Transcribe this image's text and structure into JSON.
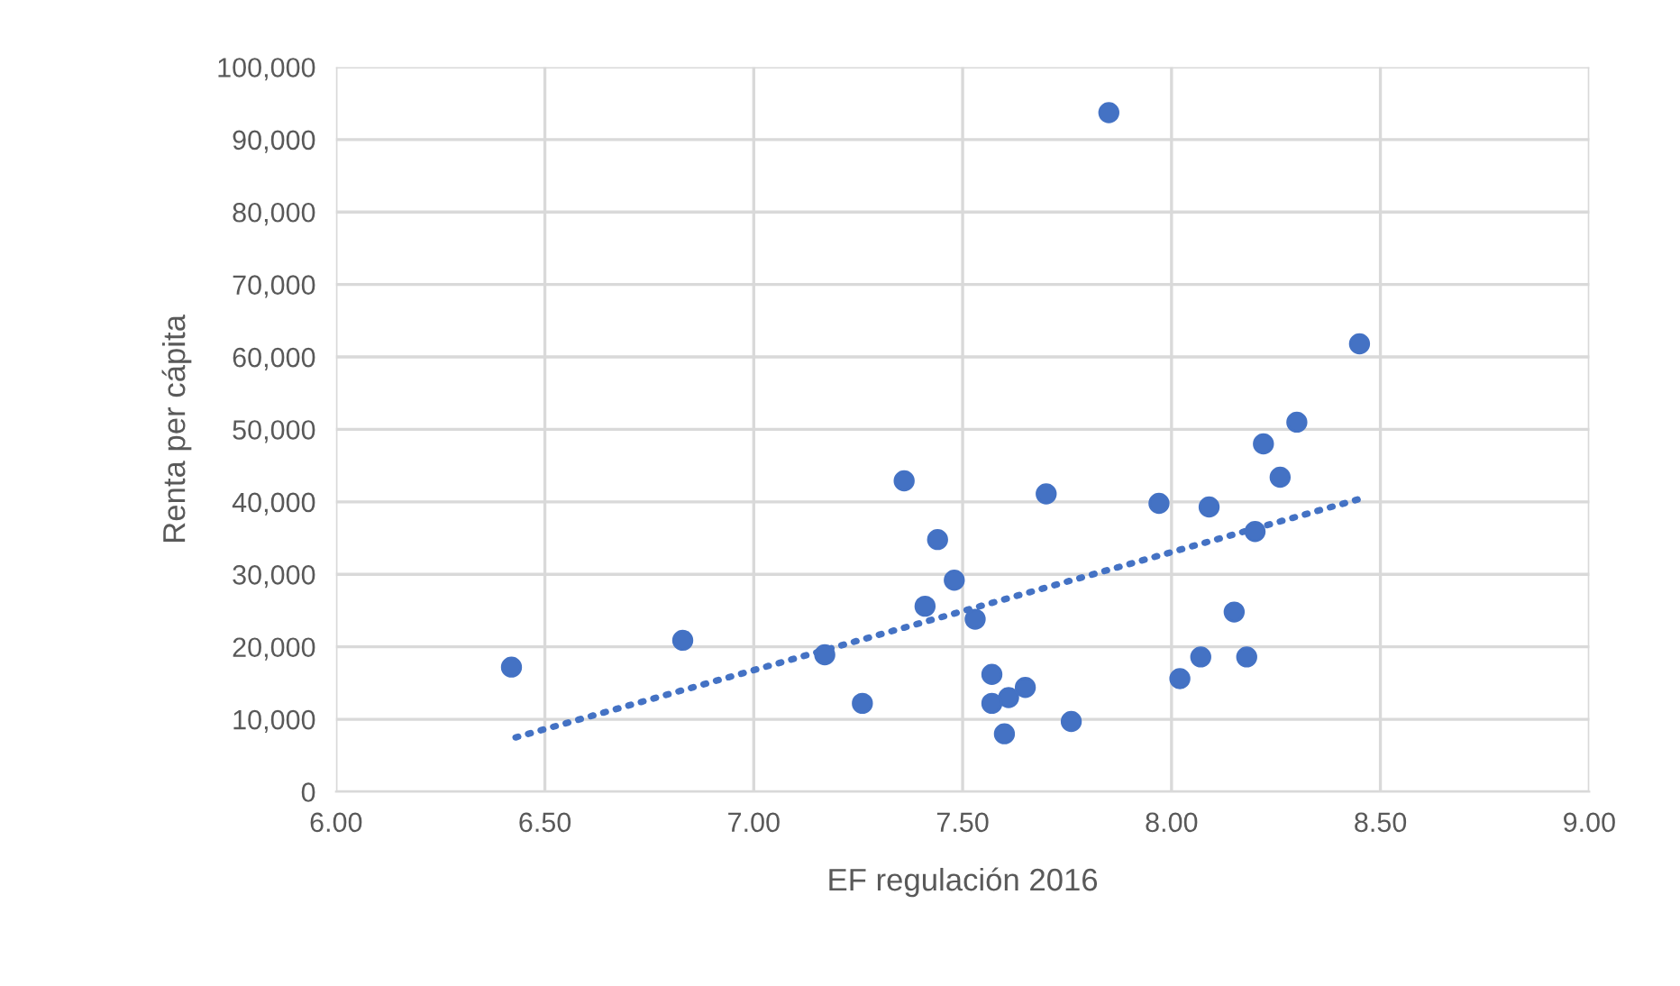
{
  "chart_data": {
    "type": "scatter",
    "xlabel": "EF regulación 2016",
    "ylabel": "Renta per cápita",
    "xlim": [
      6,
      9
    ],
    "xticks": [
      {
        "value": 6,
        "label": "6.00"
      },
      {
        "value": 6.5,
        "label": "6.50"
      },
      {
        "value": 7,
        "label": "7.00"
      },
      {
        "value": 7.5,
        "label": "7.50"
      },
      {
        "value": 8,
        "label": "8.00"
      },
      {
        "value": 8.5,
        "label": "8.50"
      },
      {
        "value": 9,
        "label": "9.00"
      }
    ],
    "ylim": [
      0,
      100000
    ],
    "yticks": [
      0,
      {
        "value": 10000,
        "label": "10,000"
      },
      {
        "value": 20000,
        "label": "20,000"
      },
      {
        "value": 30000,
        "label": "30,000"
      },
      {
        "value": 40000,
        "label": "40,000"
      },
      {
        "value": 50000,
        "label": "50,000"
      },
      {
        "value": 60000,
        "label": "60,000"
      },
      {
        "value": 70000,
        "label": "70,000"
      },
      {
        "value": 80000,
        "label": "80,000"
      },
      {
        "value": 90000,
        "label": "90,000"
      },
      {
        "value": 100000,
        "label": "100,000"
      }
    ],
    "grid": true,
    "legend": false,
    "marker": "circle",
    "series": [
      {
        "color": "#4472c4",
        "x": [
          6.42,
          6.83,
          7.17,
          7.26,
          7.85,
          8.45,
          8.3,
          8.22,
          8.26,
          7.36,
          7.7,
          7.97,
          8.09,
          8.2,
          7.44,
          7.48,
          7.41,
          7.53,
          8.15,
          7.57,
          8.07,
          8.18,
          8.02,
          7.65,
          7.61,
          7.57,
          7.6,
          7.76
        ],
        "values": [
          17200,
          20900,
          18900,
          12200,
          93700,
          61800,
          51000,
          48000,
          43400,
          42900,
          41100,
          39800,
          39300,
          35900,
          34800,
          29200,
          25600,
          23800,
          24800,
          16200,
          18600,
          18600,
          15600,
          14400,
          13000,
          12200,
          8000,
          9700
        ]
      },
      {
        "type": "line",
        "line_style": "dotted",
        "marker": "none",
        "color": "#4472c4",
        "x": [
          6.43,
          8.45
        ],
        "values": [
          7500,
          40400
        ]
      }
    ]
  }
}
